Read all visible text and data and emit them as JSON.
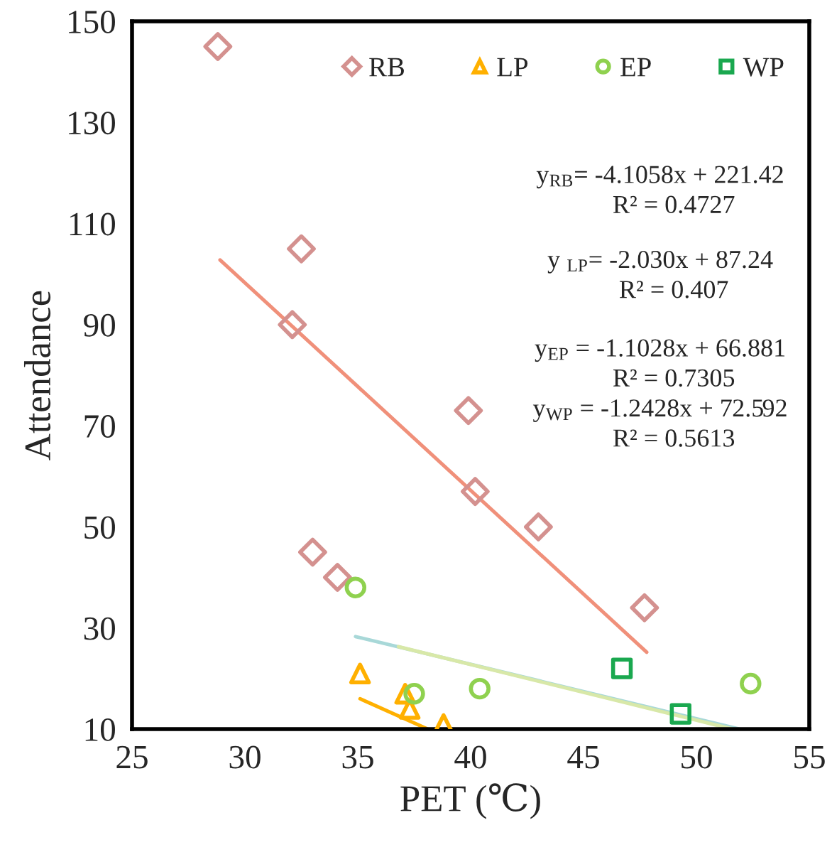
{
  "chart_data": {
    "type": "scatter",
    "xlabel": "PET (℃)",
    "ylabel": "Attendance",
    "xlim": [
      25,
      55
    ],
    "xticks": [
      25,
      30,
      35,
      40,
      45,
      50,
      55
    ],
    "ylim": [
      10,
      150
    ],
    "yticks": [
      10,
      30,
      50,
      70,
      90,
      110,
      130,
      150
    ],
    "grid": false,
    "legend": "top right",
    "series": [
      {
        "name": "RB",
        "marker": "diamond",
        "color": "#d4918f",
        "x": [
          28.8,
          32.5,
          32.1,
          39.9,
          40.2,
          43.0,
          33.0,
          34.1,
          47.7
        ],
        "values": [
          145,
          105,
          90,
          73,
          57,
          50,
          45,
          40,
          34
        ]
      },
      {
        "name": "LP",
        "marker": "triangle",
        "color": "#ffb000",
        "x": [
          35.1,
          37.1,
          37.3,
          38.8
        ],
        "values": [
          21,
          17,
          14,
          11
        ]
      },
      {
        "name": "EP",
        "marker": "circle",
        "color": "#8fd14f",
        "x": [
          34.9,
          37.5,
          40.4,
          52.4
        ],
        "values": [
          38,
          17,
          18,
          19
        ]
      },
      {
        "name": "WP",
        "marker": "square",
        "color": "#1aa84f",
        "x": [
          46.7,
          49.3
        ],
        "values": [
          22,
          13
        ]
      },
      {
        "type": "line",
        "color": "#f0907a",
        "x": [
          28.9,
          47.8
        ],
        "values": [
          102.8,
          25.2
        ]
      },
      {
        "type": "line",
        "color": "#ffb000",
        "x": [
          35.1,
          38.1
        ],
        "values": [
          16,
          10
        ]
      },
      {
        "type": "line",
        "color": "#a8d8d8",
        "x": [
          34.9,
          51.9
        ],
        "values": [
          28.3,
          10
        ]
      },
      {
        "type": "line",
        "color": "#d8e8a8",
        "x": [
          36.8,
          51.6
        ],
        "values": [
          26.3,
          10
        ]
      }
    ],
    "annotations": [
      "y$_{RB}$= -4.1058x + 221.42",
      "R² = 0.4727",
      "y $_{LP}$= -2.030x + 87.24",
      "R² = 0.407",
      "y$_{EP}$ = -1.1028x + 66.881",
      "R² = 0.7305",
      "y$_{WP}$ = -1.2428x + 72.592",
      "R² = 0.5613"
    ]
  }
}
